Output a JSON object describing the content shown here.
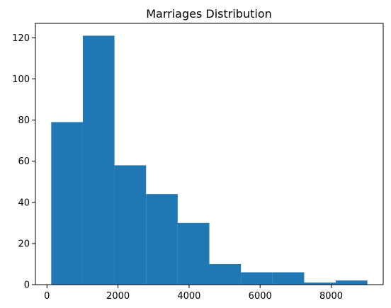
{
  "chart_data": {
    "type": "bar",
    "title": "Marriages Distribution",
    "xlabel": "",
    "ylabel": "",
    "bins": [
      {
        "x0": 120,
        "x1": 1010,
        "count": 79
      },
      {
        "x0": 1010,
        "x1": 1900,
        "count": 121
      },
      {
        "x0": 1900,
        "x1": 2790,
        "count": 58
      },
      {
        "x0": 2790,
        "x1": 3680,
        "count": 44
      },
      {
        "x0": 3680,
        "x1": 4570,
        "count": 30
      },
      {
        "x0": 4570,
        "x1": 5460,
        "count": 10
      },
      {
        "x0": 5460,
        "x1": 6350,
        "count": 6
      },
      {
        "x0": 6350,
        "x1": 7240,
        "count": 6
      },
      {
        "x0": 7240,
        "x1": 8130,
        "count": 1
      },
      {
        "x0": 8130,
        "x1": 9020,
        "count": 2
      }
    ],
    "xlim": [
      -325,
      9465
    ],
    "ylim": [
      0,
      127
    ],
    "x_ticks": [
      {
        "value": 0,
        "label": "0"
      },
      {
        "value": 2000,
        "label": "2000"
      },
      {
        "value": 4000,
        "label": "4000"
      },
      {
        "value": 6000,
        "label": "6000"
      },
      {
        "value": 8000,
        "label": "8000"
      }
    ],
    "y_ticks": [
      {
        "value": 0,
        "label": "0"
      },
      {
        "value": 20,
        "label": "20"
      },
      {
        "value": 40,
        "label": "40"
      },
      {
        "value": 60,
        "label": "60"
      },
      {
        "value": 80,
        "label": "80"
      },
      {
        "value": 100,
        "label": "100"
      },
      {
        "value": 120,
        "label": "120"
      }
    ],
    "bar_color": "#1f77b4",
    "grid": false,
    "legend": "none"
  }
}
